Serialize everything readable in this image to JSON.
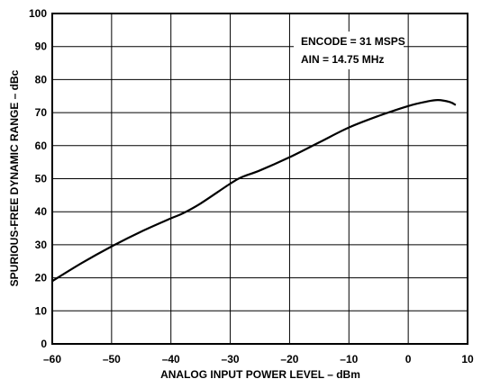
{
  "chart_data": {
    "type": "line",
    "title": "",
    "xlabel": "ANALOG INPUT POWER LEVEL – dBm",
    "ylabel": "SPURIOUS-FREE DYNAMIC RANGE – dBc",
    "xlim": [
      -60,
      10
    ],
    "ylim": [
      0,
      100
    ],
    "x_ticks": [
      -60,
      -50,
      -40,
      -30,
      -20,
      -10,
      0,
      10
    ],
    "x_tick_labels": [
      "–60",
      "–50",
      "–40",
      "–30",
      "–20",
      "–10",
      "0",
      "10"
    ],
    "y_ticks": [
      0,
      10,
      20,
      30,
      40,
      50,
      60,
      70,
      80,
      90,
      100
    ],
    "y_tick_labels": [
      "0",
      "10",
      "20",
      "30",
      "40",
      "50",
      "60",
      "70",
      "80",
      "90",
      "100"
    ],
    "grid": true,
    "legend": "none",
    "annotations": [
      "ENCODE = 31 MSPS",
      "AIN = 14.75 MHz"
    ],
    "series": [
      {
        "x": [
          -60,
          -55,
          -50,
          -45,
          -40,
          -38,
          -35,
          -30,
          -28,
          -25,
          -20,
          -15,
          -10,
          -5,
          0,
          3,
          5,
          7,
          8
        ],
        "y": [
          19,
          24.5,
          29.5,
          34,
          38,
          39.5,
          42.5,
          48.5,
          50.5,
          52.5,
          56.5,
          61,
          65.5,
          69,
          72,
          73.3,
          73.8,
          73.2,
          72.3
        ]
      }
    ]
  }
}
